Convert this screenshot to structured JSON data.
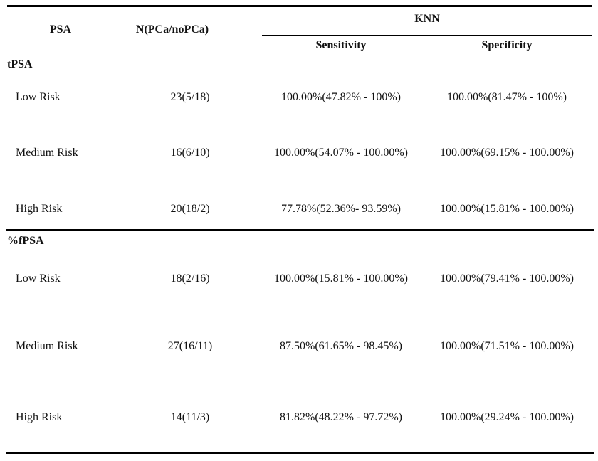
{
  "table": {
    "headers": {
      "psa": "PSA",
      "n": "N(PCa/noPCa)",
      "group": "KNN",
      "sensitivity": "Sensitivity",
      "specificity": "Specificity"
    },
    "sections": [
      {
        "name": "tPSA",
        "rows": [
          {
            "label": "Low Risk",
            "n": "23(5/18)",
            "sensitivity": "100.00%(47.82% - 100%)",
            "specificity": "100.00%(81.47% - 100%)"
          },
          {
            "label": "Medium Risk",
            "n": "16(6/10)",
            "sensitivity": "100.00%(54.07% - 100.00%)",
            "specificity": "100.00%(69.15% - 100.00%)"
          },
          {
            "label": "High Risk",
            "n": "20(18/2)",
            "sensitivity": "77.78%(52.36%- 93.59%)",
            "specificity": "100.00%(15.81% - 100.00%)"
          }
        ]
      },
      {
        "name": "%fPSA",
        "rows": [
          {
            "label": "Low Risk",
            "n": "18(2/16)",
            "sensitivity": "100.00%(15.81% - 100.00%)",
            "specificity": "100.00%(79.41% - 100.00%)"
          },
          {
            "label": "Medium Risk",
            "n": "27(16/11)",
            "sensitivity": "87.50%(61.65% - 98.45%)",
            "specificity": "100.00%(71.51% - 100.00%)"
          },
          {
            "label": "High Risk",
            "n": "14(11/3)",
            "sensitivity": "81.82%(48.22% - 97.72%)",
            "specificity": "100.00%(29.24% - 100.00%)"
          }
        ]
      }
    ],
    "colors": {
      "text": "#111111",
      "rule": "#000000",
      "background": "#ffffff"
    }
  }
}
